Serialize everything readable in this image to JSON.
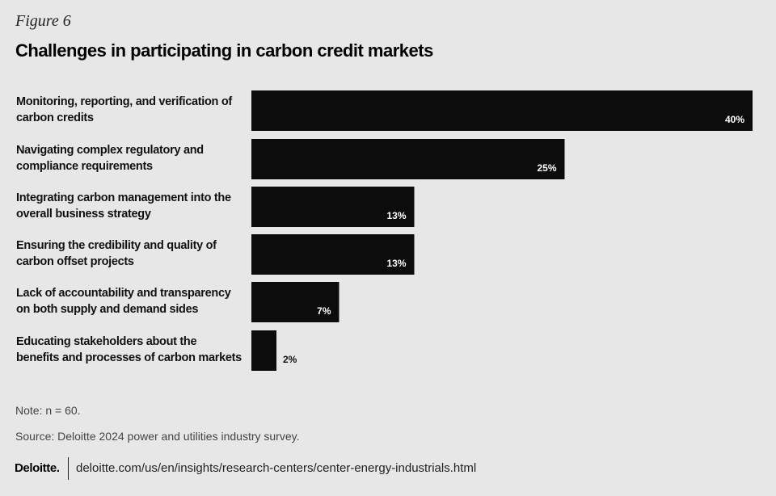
{
  "figure_label": "Figure 6",
  "footer": {
    "note": "Note: n = 60.",
    "source": "Source: Deloitte 2024 power and utilities industry survey.",
    "logo_text": "Deloitte",
    "logo_dot": ".",
    "url": "deloitte.com/us/en/insights/research-centers/center-energy-industrials.html"
  },
  "colors": {
    "background": "#e6e7e6",
    "bar": "#0c0c0c",
    "bar_label_inside": "#ffffff",
    "bar_label_outside": "#111111"
  },
  "chart_data": {
    "type": "bar",
    "orientation": "horizontal",
    "title": "Challenges in participating in carbon credit markets",
    "categories": [
      "Monitoring, reporting, and verification of carbon credits",
      "Navigating complex regulatory and compliance requirements",
      "Integrating carbon management into the overall business strategy",
      "Ensuring the credibility and quality of carbon offset projects",
      "Lack of accountability and transparency on both supply and demand sides",
      "Educating stakeholders about the benefits and processes of carbon markets"
    ],
    "values": [
      40,
      25,
      13,
      13,
      7,
      2
    ],
    "value_labels": [
      "40%",
      "25%",
      "13%",
      "13%",
      "7%",
      "2%"
    ],
    "xlabel": "",
    "ylabel": "",
    "xlim": [
      0,
      40
    ],
    "grid": false,
    "legend": "none"
  }
}
